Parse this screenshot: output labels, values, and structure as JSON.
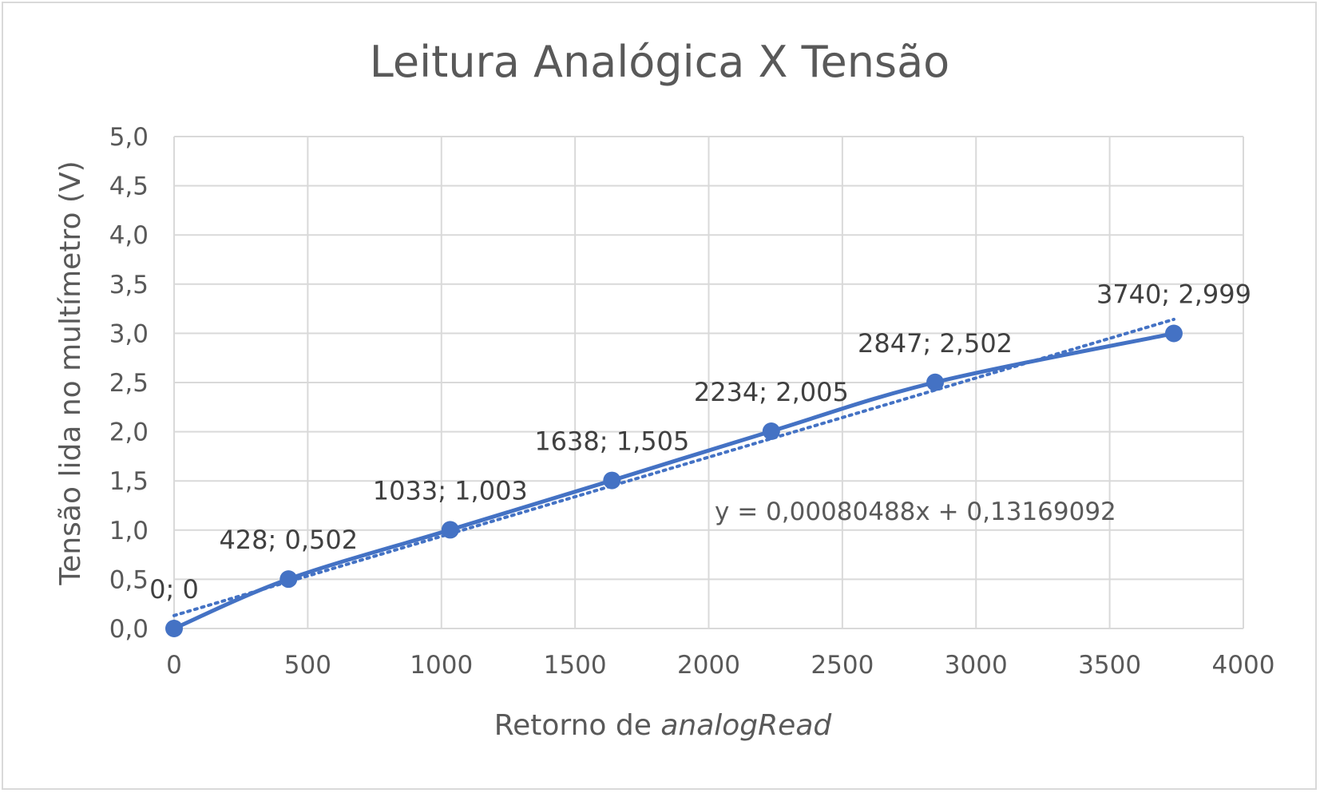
{
  "chart_data": {
    "type": "scatter",
    "title": "Leitura Analógica X Tensão",
    "xlabel_prefix": "Retorno de ",
    "xlabel_italic": "analogRead",
    "ylabel": "Tensão lida no multímetro (V)",
    "xlim": [
      0,
      4000
    ],
    "ylim": [
      0,
      5
    ],
    "xticks": [
      "0",
      "500",
      "1000",
      "1500",
      "2000",
      "2500",
      "3000",
      "3500",
      "4000"
    ],
    "yticks": [
      "0,0",
      "0,5",
      "1,0",
      "1,5",
      "2,0",
      "2,5",
      "3,0",
      "3,5",
      "4,0",
      "4,5",
      "5,0"
    ],
    "grid": true,
    "series": [
      {
        "x": [
          0,
          428,
          1033,
          1638,
          2234,
          2847,
          3740
        ],
        "y": [
          0,
          0.502,
          1.003,
          1.505,
          2.005,
          2.502,
          2.999
        ],
        "labels": [
          "0; 0",
          "428; 0,502",
          "1033; 1,003",
          "1638; 1,505",
          "2234; 2,005",
          "2847; 2,502",
          "3740; 2,999"
        ],
        "color": "#4472c4",
        "line": "smooth"
      }
    ],
    "trendline": {
      "slope": 0.00080488,
      "intercept": 0.13169092,
      "equation": "y = 0,00080488x + 0,13169092",
      "style": "dotted",
      "color": "#4472c4"
    }
  }
}
